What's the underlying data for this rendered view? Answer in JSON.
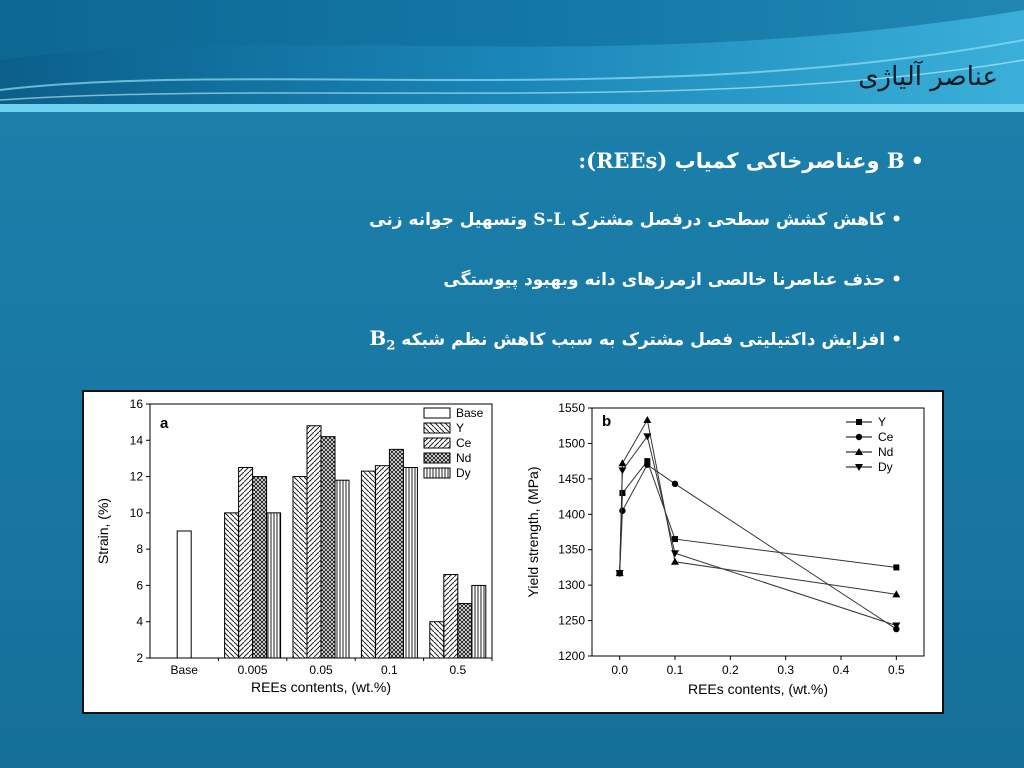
{
  "slide": {
    "title": "عناصر آلیاژی",
    "bullets": [
      {
        "prefix": "B",
        "text": " وعناصرخاکی کمیاب ",
        "suffix": "(REEs):"
      },
      {
        "text": "کاهش کشش سطحی درفصل مشترک ",
        "latin": "S-L",
        "tail": " وتسهیل جوانه زنی"
      },
      {
        "text": "حذف عناصرنا خالصی ازمرزهای دانه وبهبود پیوستگی"
      },
      {
        "text": "افزایش داکتیلیتی فصل مشترک به سبب کاهش نظم شبکه ",
        "latin": "B",
        "sub": "2"
      }
    ]
  },
  "colors": {
    "background": "#1a7aa6",
    "title_text": "#0c1a24",
    "bullet_text": "#ffffff",
    "figure_bg": "#ffffff"
  },
  "chart_data": [
    {
      "type": "bar",
      "panel_label": "a",
      "categories": [
        "Base",
        "0.005",
        "0.05",
        "0.1",
        "0.5"
      ],
      "series": [
        {
          "name": "Base",
          "values": [
            9,
            null,
            null,
            null,
            null
          ],
          "pattern": "empty"
        },
        {
          "name": "Y",
          "values": [
            null,
            10,
            12,
            12.3,
            4
          ],
          "pattern": "diag-back"
        },
        {
          "name": "Ce",
          "values": [
            null,
            12.5,
            14.8,
            12.6,
            6.6
          ],
          "pattern": "diag-fwd"
        },
        {
          "name": "Nd",
          "values": [
            null,
            12,
            14.2,
            13.5,
            5
          ],
          "pattern": "cross"
        },
        {
          "name": "Dy",
          "values": [
            null,
            10,
            11.8,
            12.5,
            6
          ],
          "pattern": "vertical"
        }
      ],
      "xlabel": "REEs contents, (wt.%)",
      "ylabel": "Strain, (%)",
      "ylim": [
        2,
        16
      ],
      "yticks": [
        2,
        4,
        6,
        8,
        10,
        12,
        14,
        16
      ],
      "legend": "top-right"
    },
    {
      "type": "line",
      "panel_label": "b",
      "x": [
        0.0,
        0.005,
        0.05,
        0.1,
        0.5
      ],
      "series": [
        {
          "name": "Y",
          "values": [
            1317,
            1430,
            1475,
            1365,
            1325
          ],
          "marker": "square"
        },
        {
          "name": "Ce",
          "values": [
            1317,
            1405,
            1470,
            1443,
            1238
          ],
          "marker": "circle"
        },
        {
          "name": "Nd",
          "values": [
            1317,
            1472,
            1533,
            1333,
            1287
          ],
          "marker": "triangle-up"
        },
        {
          "name": "Dy",
          "values": [
            1317,
            1462,
            1510,
            1345,
            1243
          ],
          "marker": "triangle-down"
        }
      ],
      "xlabel": "REEs contents, (wt.%)",
      "ylabel": "Yield strength, (MPa)",
      "xlim": [
        -0.05,
        0.55
      ],
      "ylim": [
        1200,
        1550
      ],
      "xticks": [
        "0.0",
        "0.1",
        "0.2",
        "0.3",
        "0.4",
        "0.5"
      ],
      "yticks": [
        1200,
        1250,
        1300,
        1350,
        1400,
        1450,
        1500,
        1550
      ],
      "legend": "top-right"
    }
  ]
}
